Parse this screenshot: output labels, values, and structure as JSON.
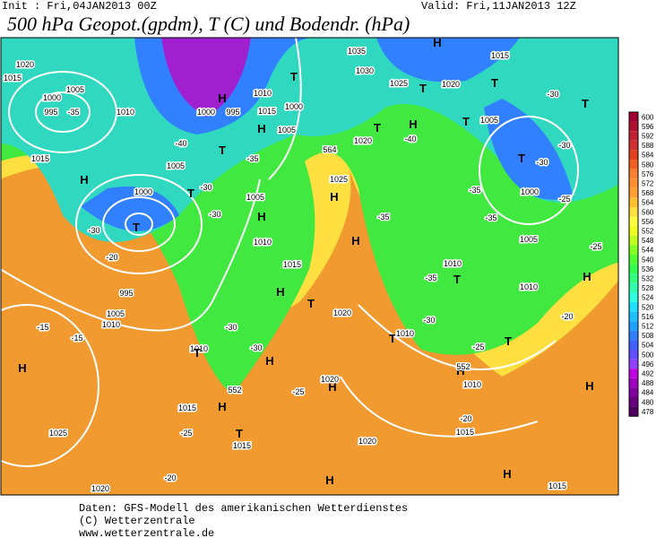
{
  "header": {
    "init": "Init : Fri,04JAN2013 00Z",
    "valid": "Valid: Fri,11JAN2013 12Z",
    "title": "500 hPa Geopot.(gpdm), T (C) und Bodendr. (hPa)"
  },
  "map": {
    "labels": [
      "1020",
      "1015",
      "1005",
      "1000",
      "995",
      "-35",
      "1010",
      "1015",
      "H",
      "-40",
      "1005",
      "T",
      "H",
      "1000",
      "995",
      "1010",
      "1015",
      "1000",
      "H",
      "1005",
      "T",
      "-35",
      "1035",
      "1030",
      "1025",
      "T",
      "H",
      "1020",
      "1015",
      "T",
      "-30",
      "T",
      "1005",
      "T",
      "H",
      "-40",
      "1020",
      "T",
      "-30",
      "T",
      "-30",
      "1000",
      "-25",
      "-35",
      "-35",
      "564",
      "1025",
      "H",
      "-35",
      "H",
      "1000",
      "T",
      "-30",
      "T",
      "1005",
      "H",
      "-30",
      "1010",
      "-30",
      "-20",
      "995",
      "1005",
      "1010",
      "-15",
      "-15",
      "1015",
      "H",
      "-30",
      "T",
      "1020",
      "1010",
      "T",
      "-30",
      "H",
      "552",
      "-25",
      "H",
      "1020",
      "1015",
      "H",
      "-25",
      "T",
      "1015",
      "-20",
      "1020",
      "H",
      "1025",
      "1020",
      "-20",
      "1015",
      "H",
      "1015",
      "H",
      "T",
      "1010",
      "-30",
      "-35",
      "T",
      "1010",
      "-25",
      "T",
      "H",
      "1010",
      "552",
      "-20",
      "H",
      "-25",
      "H",
      "1010",
      "1005"
    ]
  },
  "colorbar": {
    "labels": [
      "600",
      "596",
      "592",
      "588",
      "584",
      "580",
      "576",
      "572",
      "568",
      "564",
      "560",
      "556",
      "552",
      "548",
      "544",
      "540",
      "536",
      "532",
      "528",
      "524",
      "520",
      "516",
      "512",
      "508",
      "504",
      "500",
      "496",
      "492",
      "488",
      "484",
      "480",
      "478"
    ],
    "colors": [
      "#a00030",
      "#b01030",
      "#c02030",
      "#d03030",
      "#e04020",
      "#f06020",
      "#f88030",
      "#ff9030",
      "#ffa030",
      "#ffc030",
      "#ffe040",
      "#ffff40",
      "#f0ff20",
      "#c0ff20",
      "#80ff20",
      "#50ff30",
      "#30ff50",
      "#30ff80",
      "#30ffb0",
      "#30ffe0",
      "#20e0ff",
      "#20c0ff",
      "#20a0ff",
      "#3080ff",
      "#4060ff",
      "#6050ff",
      "#9040ff",
      "#c000e0",
      "#a000c0",
      "#8000a0",
      "#6a0080",
      "#500060"
    ]
  },
  "footer": {
    "source": "Daten: GFS-Modell des amerikanischen Wetterdienstes",
    "copyright": "(C) Wetterzentrale",
    "url": "www.wetterzentrale.de"
  }
}
